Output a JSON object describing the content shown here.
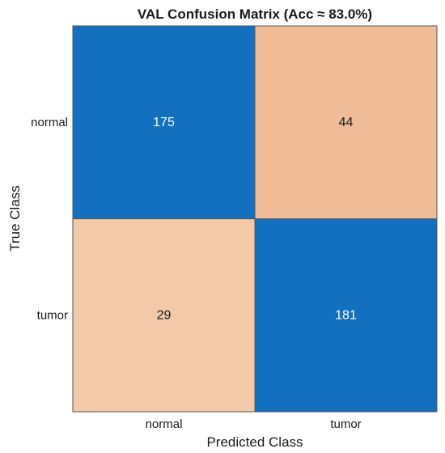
{
  "chart_data": {
    "type": "heatmap",
    "title": "VAL Confusion Matrix (Acc ≈ 83.0%)",
    "xlabel": "Predicted Class",
    "ylabel": "True Class",
    "x_categories": [
      "normal",
      "tumor"
    ],
    "y_categories": [
      "normal",
      "tumor"
    ],
    "values": [
      [
        175,
        44
      ],
      [
        29,
        181
      ]
    ],
    "colors": {
      "diagonal": "#1270BE",
      "off_diagonal_high": "#F0BC98",
      "off_diagonal_low": "#F3CAA9",
      "border": "#555555",
      "text_on_diagonal": "#ffffff",
      "text_off_diagonal": "#1a1a1a"
    },
    "grid": false,
    "legend": "none"
  }
}
